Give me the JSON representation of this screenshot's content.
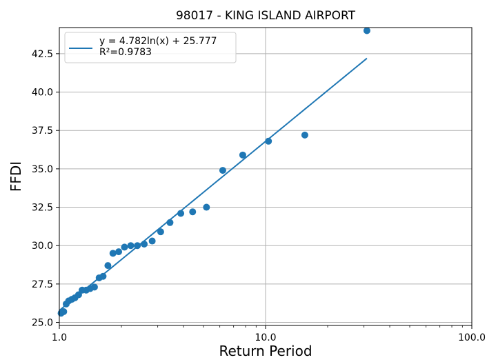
{
  "chart_data": {
    "type": "scatter",
    "title": "98017 - KING ISLAND AIRPORT",
    "xlabel": "Return Period",
    "ylabel": "FFDI",
    "x_scale": "log",
    "xlim": [
      1.0,
      100.0
    ],
    "ylim": [
      24.8,
      44.2
    ],
    "x_ticks": [
      1.0,
      10.0,
      100.0
    ],
    "x_tick_labels": [
      "1.0",
      "10.0",
      "100.0"
    ],
    "y_ticks": [
      25.0,
      27.5,
      30.0,
      32.5,
      35.0,
      37.5,
      40.0,
      42.5
    ],
    "y_tick_labels": [
      "25.0",
      "27.5",
      "30.0",
      "32.5",
      "35.0",
      "37.5",
      "40.0",
      "42.5"
    ],
    "grid": true,
    "legend_position": "upper-left",
    "colors": {
      "series": "#1f77b4"
    },
    "series": [
      {
        "kind": "scatter",
        "x": [
          1.02,
          1.05,
          1.08,
          1.11,
          1.15,
          1.19,
          1.24,
          1.29,
          1.35,
          1.41,
          1.48,
          1.56,
          1.63,
          1.72,
          1.82,
          1.94,
          2.07,
          2.22,
          2.39,
          2.58,
          2.82,
          3.1,
          3.44,
          3.88,
          4.43,
          5.17,
          6.2,
          7.75,
          10.33,
          15.5,
          31.0
        ],
        "y": [
          25.6,
          25.7,
          26.2,
          26.4,
          26.5,
          26.6,
          26.8,
          27.1,
          27.1,
          27.2,
          27.3,
          27.9,
          28.0,
          28.7,
          29.5,
          29.6,
          29.9,
          30.0,
          30.0,
          30.1,
          30.3,
          30.9,
          31.5,
          32.1,
          32.2,
          32.5,
          34.9,
          35.9,
          36.8,
          37.2,
          44.0
        ]
      },
      {
        "kind": "line",
        "name": "y = 4.782ln(x) + 25.777\nR²=0.9783",
        "fit": {
          "a": 4.782,
          "b": 25.777
        },
        "x": [
          1.0,
          31.0
        ]
      }
    ]
  }
}
